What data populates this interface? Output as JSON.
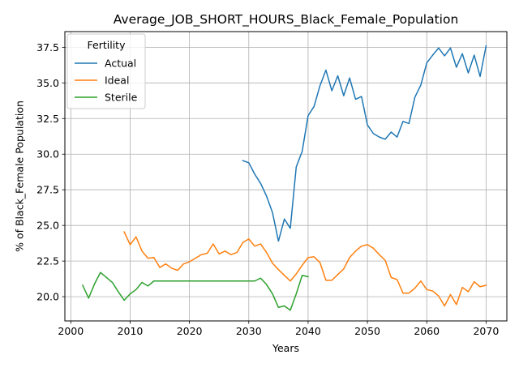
{
  "chart_data": {
    "type": "line",
    "title": "Average_JOB_SHORT_HOURS_Black_Female_Population",
    "xlabel": "Years",
    "ylabel": "% of Black_Female Population",
    "xlim": [
      1999,
      2073.5
    ],
    "ylim": [
      18.3,
      38.6
    ],
    "xticks": [
      2000,
      2010,
      2020,
      2030,
      2040,
      2050,
      2060,
      2070
    ],
    "yticks": [
      20.0,
      22.5,
      25.0,
      27.5,
      30.0,
      32.5,
      35.0,
      37.5
    ],
    "xtick_labels": [
      "2000",
      "2010",
      "2020",
      "2030",
      "2040",
      "2050",
      "2060",
      "2070"
    ],
    "ytick_labels": [
      "20.0",
      "22.5",
      "25.0",
      "27.5",
      "30.0",
      "32.5",
      "35.0",
      "37.5"
    ],
    "grid": true,
    "legend": {
      "title": "Fertility",
      "position": "upper-left"
    },
    "series": [
      {
        "name": "Actual",
        "color": "#1f77b4",
        "x": [
          2029,
          2030,
          2031,
          2032,
          2033,
          2034,
          2035,
          2036,
          2037,
          2038,
          2039,
          2040,
          2041,
          2042,
          2043,
          2044,
          2045,
          2046,
          2047,
          2048,
          2049,
          2050,
          2051,
          2052,
          2053,
          2054,
          2055,
          2056,
          2057,
          2058,
          2059,
          2060,
          2061,
          2062,
          2063,
          2064,
          2065,
          2066,
          2067,
          2068,
          2069,
          2070
        ],
        "y": [
          29.55,
          29.4,
          28.6,
          27.95,
          27.05,
          25.9,
          23.9,
          25.45,
          24.8,
          29.1,
          30.2,
          32.7,
          33.35,
          34.8,
          35.9,
          34.45,
          35.5,
          34.1,
          35.35,
          33.85,
          34.05,
          32.05,
          31.45,
          31.2,
          31.05,
          31.55,
          31.2,
          32.3,
          32.15,
          34.0,
          34.85,
          36.4,
          36.95,
          37.45,
          36.9,
          37.45,
          36.1,
          37.05,
          35.7,
          36.95,
          35.45,
          37.6
        ]
      },
      {
        "name": "Ideal",
        "color": "#ff7f0e",
        "x": [
          2009,
          2010,
          2011,
          2012,
          2013,
          2014,
          2015,
          2016,
          2017,
          2018,
          2019,
          2020,
          2021,
          2022,
          2023,
          2024,
          2025,
          2026,
          2027,
          2028,
          2029,
          2030,
          2031,
          2032,
          2033,
          2034,
          2035,
          2036,
          2037,
          2038,
          2039,
          2040,
          2041,
          2042,
          2043,
          2044,
          2045,
          2046,
          2047,
          2048,
          2049,
          2050,
          2051,
          2052,
          2053,
          2054,
          2055,
          2056,
          2057,
          2058,
          2059,
          2060,
          2061,
          2062,
          2063,
          2064,
          2065,
          2066,
          2067,
          2068,
          2069,
          2070
        ],
        "y": [
          24.55,
          23.65,
          24.2,
          23.2,
          22.7,
          22.75,
          22.05,
          22.3,
          22.0,
          21.85,
          22.3,
          22.45,
          22.7,
          22.95,
          23.05,
          23.7,
          23.0,
          23.2,
          22.95,
          23.1,
          23.8,
          24.05,
          23.55,
          23.7,
          23.1,
          22.35,
          21.9,
          21.5,
          21.1,
          21.6,
          22.2,
          22.75,
          22.8,
          22.4,
          21.15,
          21.15,
          21.55,
          21.95,
          22.75,
          23.2,
          23.55,
          23.65,
          23.4,
          22.95,
          22.55,
          21.35,
          21.2,
          20.25,
          20.25,
          20.6,
          21.1,
          20.5,
          20.4,
          20.05,
          19.35,
          20.15,
          19.45,
          20.65,
          20.35,
          21.05,
          20.7,
          20.8
        ]
      },
      {
        "name": "Sterile",
        "color": "#2ca02c",
        "x": [
          2002,
          2003,
          2004,
          2005,
          2006,
          2007,
          2008,
          2009,
          2010,
          2011,
          2012,
          2013,
          2014,
          2015,
          2016,
          2017,
          2018,
          2019,
          2020,
          2021,
          2022,
          2023,
          2024,
          2025,
          2026,
          2027,
          2028,
          2029,
          2030,
          2031,
          2032,
          2033,
          2034,
          2035,
          2036,
          2037,
          2038,
          2039,
          2040
        ],
        "y": [
          20.8,
          19.9,
          20.9,
          21.7,
          21.35,
          21.0,
          20.35,
          19.75,
          20.2,
          20.5,
          21.0,
          20.75,
          21.1,
          21.1,
          21.1,
          21.1,
          21.1,
          21.1,
          21.1,
          21.1,
          21.1,
          21.1,
          21.1,
          21.1,
          21.1,
          21.1,
          21.1,
          21.1,
          21.1,
          21.1,
          21.3,
          20.85,
          20.2,
          19.25,
          19.35,
          19.05,
          20.2,
          21.5,
          21.4
        ]
      }
    ]
  }
}
